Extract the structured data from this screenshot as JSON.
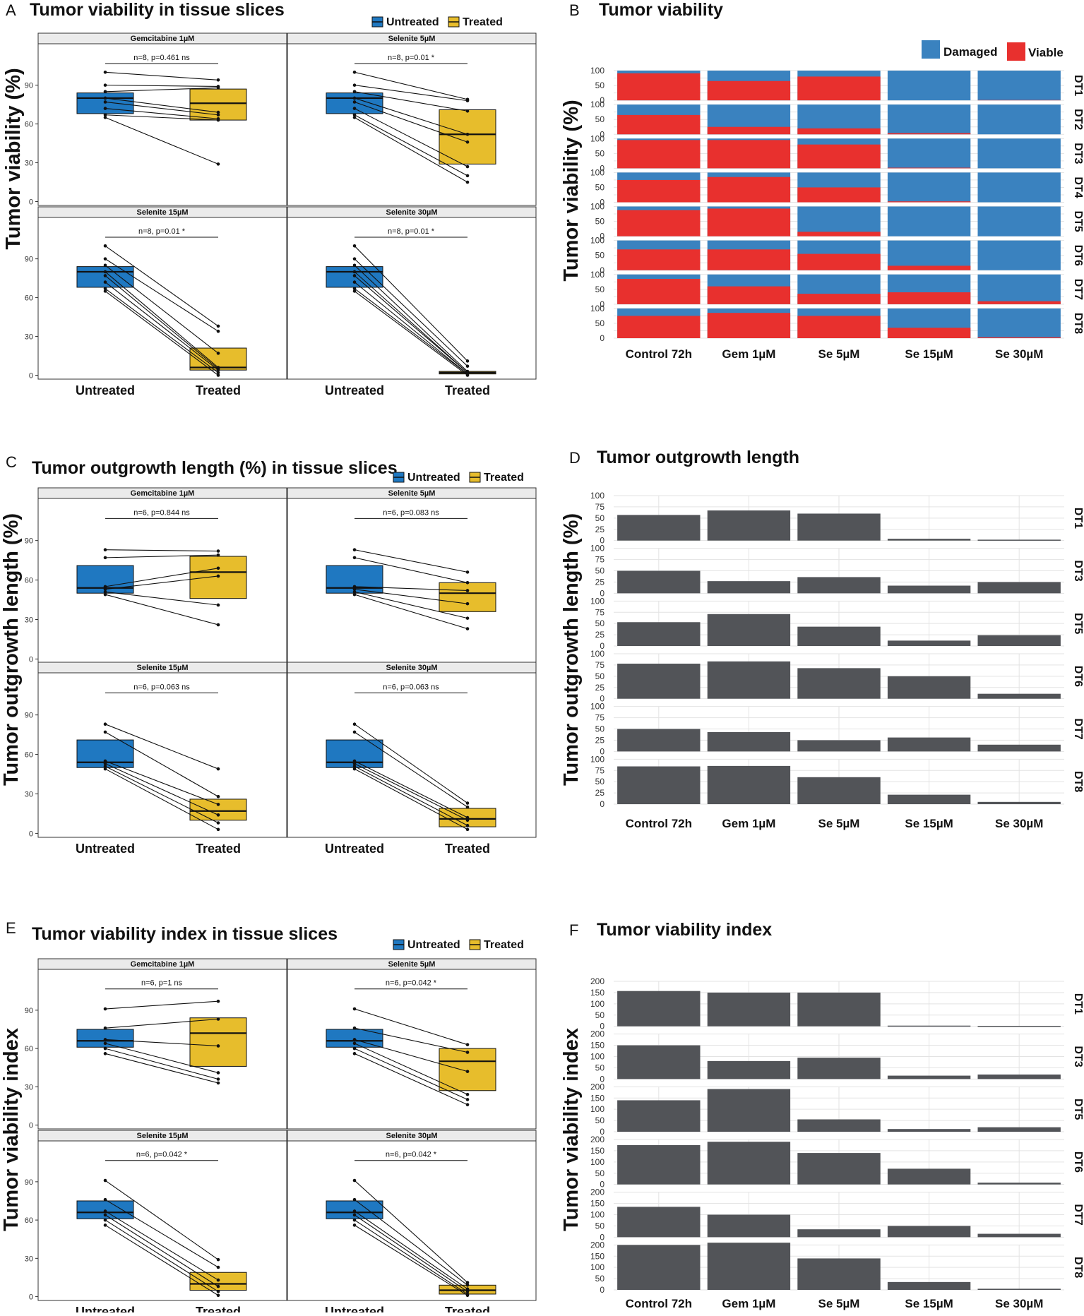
{
  "colors": {
    "untreated": "#1f78c1",
    "treated": "#e7bd2c",
    "damaged": "#3a82bf",
    "viable": "#e8302e",
    "bar": "#525458",
    "strip": "#ebebeb",
    "grid": "#e3e3e3"
  },
  "chart_data": [
    {
      "id": "A",
      "type": "boxplot",
      "letter": "A",
      "title": "Tumor viability in tissue slices",
      "ylabel": "Tumor viability (%)",
      "ylim": [
        -3,
        122
      ],
      "yticks": [
        0,
        30,
        60,
        90
      ],
      "groups": [
        "Untreated",
        "Treated"
      ],
      "legend": {
        "untreated": "Untreated",
        "treated": "Treated"
      },
      "panels": [
        {
          "strip": "Gemcitabine 1µM",
          "stat": "n=8, p=0.461 ns",
          "untreated": {
            "q1": 68,
            "median": 80,
            "q3": 84,
            "points": [
              100,
              90,
              85,
              80,
              77,
              72,
              67,
              65
            ]
          },
          "treated": {
            "q1": 63,
            "median": 76,
            "q3": 87,
            "points": [
              94,
              89,
              88,
              69,
              67,
              64,
              63,
              29
            ]
          }
        },
        {
          "strip": "Selenite 5µM",
          "stat": "n=8, p=0.01 *",
          "untreated": {
            "q1": 68,
            "median": 80,
            "q3": 84,
            "points": [
              100,
              90,
              85,
              80,
              77,
              72,
              67,
              65
            ]
          },
          "treated": {
            "q1": 29,
            "median": 52,
            "q3": 71,
            "points": [
              79,
              78,
              70,
              52,
              46,
              27,
              20,
              15
            ]
          }
        },
        {
          "strip": "Selenite 15µM",
          "stat": "n=8, p=0.01 *",
          "untreated": {
            "q1": 68,
            "median": 80,
            "q3": 84,
            "points": [
              100,
              90,
              85,
              80,
              77,
              72,
              67,
              65
            ]
          },
          "treated": {
            "q1": 4,
            "median": 6,
            "q3": 21,
            "points": [
              38,
              34,
              17,
              6,
              5,
              4,
              2,
              0
            ]
          }
        },
        {
          "strip": "Selenite 30µM",
          "stat": "n=8, p=0.01 *",
          "untreated": {
            "q1": 68,
            "median": 80,
            "q3": 84,
            "points": [
              100,
              90,
              85,
              80,
              77,
              72,
              67,
              65
            ]
          },
          "treated": {
            "q1": 1,
            "median": 2,
            "q3": 3,
            "points": [
              11,
              7,
              3,
              2,
              2,
              1,
              1,
              0
            ]
          }
        }
      ]
    },
    {
      "id": "B",
      "type": "stacked-bar",
      "letter": "B",
      "title": "Tumor viability",
      "ylabel": "Tumor viability (%)",
      "categories": [
        "Control 72h",
        "Gem 1µM",
        "Se 5µM",
        "Se 15µM",
        "Se 30µM"
      ],
      "yticks": [
        0,
        50,
        100
      ],
      "ymax": 100,
      "legend": {
        "damaged": "Damaged",
        "viable": "Viable"
      },
      "rows": [
        {
          "label": "DT1",
          "viable": [
            91,
            65,
            80,
            0,
            1
          ]
        },
        {
          "label": "DT2",
          "viable": [
            65,
            25,
            20,
            4,
            0
          ]
        },
        {
          "label": "DT3",
          "viable": [
            95,
            95,
            80,
            2,
            0
          ]
        },
        {
          "label": "DT4",
          "viable": [
            75,
            85,
            50,
            3,
            0
          ]
        },
        {
          "label": "DT5",
          "viable": [
            88,
            93,
            15,
            0,
            0
          ]
        },
        {
          "label": "DT6",
          "viable": [
            70,
            70,
            55,
            15,
            0
          ]
        },
        {
          "label": "DT7",
          "viable": [
            85,
            60,
            35,
            40,
            10
          ]
        },
        {
          "label": "DT8",
          "viable": [
            75,
            85,
            75,
            35,
            3
          ]
        }
      ]
    },
    {
      "id": "C",
      "type": "boxplot",
      "letter": "C",
      "title": "Tumor outgrowth length (%) in tissue slices",
      "ylabel": "Tumor outgrowth length (%)",
      "ylim": [
        -3,
        122
      ],
      "yticks": [
        0,
        30,
        60,
        90
      ],
      "groups": [
        "Untreated",
        "Treated"
      ],
      "legend": {
        "untreated": "Untreated",
        "treated": "Treated"
      },
      "panels": [
        {
          "strip": "Gemcitabine 1µM",
          "stat": "n=6, p=0.844 ns",
          "untreated": {
            "q1": 50,
            "median": 54,
            "q3": 71,
            "points": [
              83,
              77,
              55,
              53,
              51,
              49
            ]
          },
          "treated": {
            "q1": 46,
            "median": 66,
            "q3": 78,
            "points": [
              82,
              79,
              69,
              63,
              41,
              26
            ]
          }
        },
        {
          "strip": "Selenite 5µM",
          "stat": "n=6, p=0.083 ns",
          "untreated": {
            "q1": 50,
            "median": 54,
            "q3": 71,
            "points": [
              83,
              77,
              55,
              53,
              51,
              49
            ]
          },
          "treated": {
            "q1": 36,
            "median": 50,
            "q3": 58,
            "points": [
              66,
              58,
              52,
              42,
              31,
              23
            ]
          }
        },
        {
          "strip": "Selenite 15µM",
          "stat": "n=6, p=0.063 ns",
          "untreated": {
            "q1": 50,
            "median": 54,
            "q3": 71,
            "points": [
              83,
              77,
              55,
              53,
              51,
              49
            ]
          },
          "treated": {
            "q1": 10,
            "median": 17,
            "q3": 26,
            "points": [
              49,
              28,
              22,
              14,
              8,
              3
            ]
          }
        },
        {
          "strip": "Selenite 30µM",
          "stat": "n=6, p=0.063 ns",
          "untreated": {
            "q1": 50,
            "median": 54,
            "q3": 71,
            "points": [
              83,
              77,
              55,
              53,
              51,
              49
            ]
          },
          "treated": {
            "q1": 5,
            "median": 11,
            "q3": 19,
            "points": [
              23,
              20,
              12,
              10,
              6,
              3
            ]
          }
        }
      ]
    },
    {
      "id": "D",
      "type": "bar",
      "letter": "D",
      "title": "Tumor outgrowth length",
      "ylabel": "Tumor outgrowth length (%)",
      "categories": [
        "Control 72h",
        "Gem 1µM",
        "Se 5µM",
        "Se 15µM",
        "Se 30µM"
      ],
      "yticks": [
        0,
        25,
        50,
        75,
        100
      ],
      "ymax": 100,
      "rows": [
        {
          "label": "DT1",
          "values": [
            57,
            67,
            60,
            4,
            2
          ]
        },
        {
          "label": "DT3",
          "values": [
            50,
            27,
            36,
            17,
            25
          ]
        },
        {
          "label": "DT5",
          "values": [
            53,
            71,
            43,
            12,
            24
          ]
        },
        {
          "label": "DT6",
          "values": [
            78,
            83,
            68,
            50,
            11
          ]
        },
        {
          "label": "DT7",
          "values": [
            50,
            43,
            25,
            31,
            15
          ]
        },
        {
          "label": "DT8",
          "values": [
            84,
            85,
            60,
            21,
            5
          ]
        }
      ]
    },
    {
      "id": "E",
      "type": "boxplot",
      "letter": "E",
      "title": "Tumor viability index in tissue slices",
      "ylabel": "Tumor viability index",
      "ylim": [
        -3,
        122
      ],
      "yticks": [
        0,
        30,
        60,
        90
      ],
      "groups": [
        "Untreated",
        "Treated"
      ],
      "legend": {
        "untreated": "Untreated",
        "treated": "Treated"
      },
      "panels": [
        {
          "strip": "Gemcitabine 1µM",
          "stat": "n=6, p=1 ns",
          "untreated": {
            "q1": 61,
            "median": 66,
            "q3": 75,
            "points": [
              91,
              76,
              67,
              64,
              60,
              56
            ]
          },
          "treated": {
            "q1": 46,
            "median": 72,
            "q3": 84,
            "points": [
              97,
              83,
              62,
              41,
              36,
              33
            ]
          }
        },
        {
          "strip": "Selenite 5µM",
          "stat": "n=6, p=0.042 *",
          "untreated": {
            "q1": 61,
            "median": 66,
            "q3": 75,
            "points": [
              91,
              76,
              67,
              64,
              60,
              56
            ]
          },
          "treated": {
            "q1": 27,
            "median": 50,
            "q3": 60,
            "points": [
              63,
              57,
              42,
              24,
              20,
              16
            ]
          }
        },
        {
          "strip": "Selenite 15µM",
          "stat": "n=6, p=0.042 *",
          "untreated": {
            "q1": 61,
            "median": 66,
            "q3": 75,
            "points": [
              91,
              76,
              67,
              64,
              60,
              56
            ]
          },
          "treated": {
            "q1": 5,
            "median": 10,
            "q3": 19,
            "points": [
              29,
              23,
              13,
              8,
              4,
              1
            ]
          }
        },
        {
          "strip": "Selenite 30µM",
          "stat": "n=6, p=0.042 *",
          "untreated": {
            "q1": 61,
            "median": 66,
            "q3": 75,
            "points": [
              91,
              76,
              67,
              64,
              60,
              56
            ]
          },
          "treated": {
            "q1": 2,
            "median": 5,
            "q3": 9,
            "points": [
              11,
              9,
              6,
              4,
              2,
              1
            ]
          }
        }
      ]
    },
    {
      "id": "F",
      "type": "bar",
      "letter": "F",
      "title": "Tumor viability index",
      "ylabel": "Tumor viability index",
      "categories": [
        "Control 72h",
        "Gem 1µM",
        "Se 5µM",
        "Se 15µM",
        "Se 30µM"
      ],
      "yticks": [
        0,
        50,
        100,
        150,
        200
      ],
      "ymax": 200,
      "rows": [
        {
          "label": "DT1",
          "values": [
            157,
            150,
            150,
            3,
            2
          ]
        },
        {
          "label": "DT3",
          "values": [
            150,
            80,
            95,
            15,
            20
          ]
        },
        {
          "label": "DT5",
          "values": [
            140,
            190,
            55,
            12,
            20
          ]
        },
        {
          "label": "DT6",
          "values": [
            175,
            190,
            140,
            70,
            8
          ]
        },
        {
          "label": "DT7",
          "values": [
            135,
            100,
            35,
            50,
            15
          ]
        },
        {
          "label": "DT8",
          "values": [
            200,
            210,
            140,
            35,
            5
          ]
        }
      ]
    }
  ]
}
